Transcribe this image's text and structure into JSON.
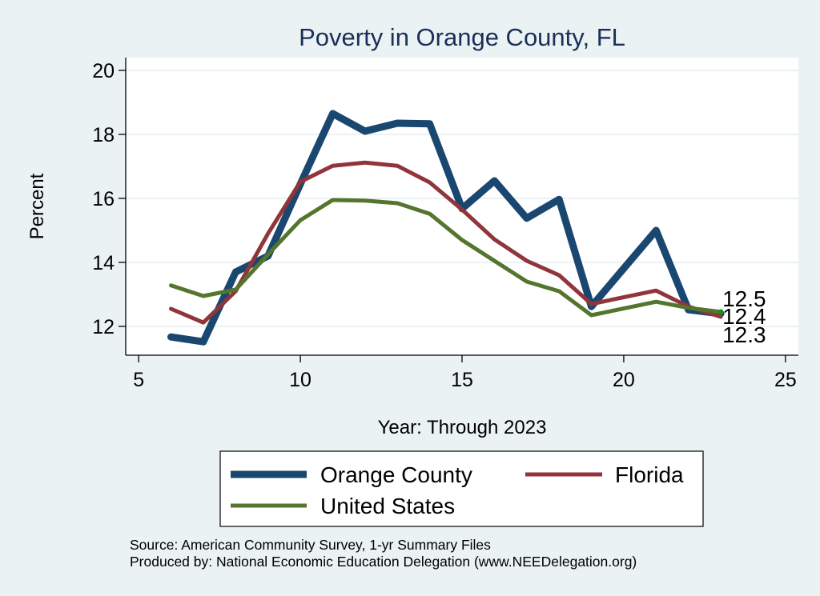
{
  "chart_data": {
    "type": "line",
    "title": "Poverty in Orange County, FL",
    "xlabel": "Year: Through 2023",
    "ylabel": "Percent",
    "xlim": [
      4.6,
      25.4
    ],
    "ylim": [
      11.1,
      20.4
    ],
    "xticks": [
      5,
      10,
      15,
      20,
      25
    ],
    "yticks": [
      12,
      14,
      16,
      18,
      20
    ],
    "grid": "horizontal",
    "x": [
      6,
      7,
      8,
      9,
      10,
      11,
      12,
      13,
      14,
      15,
      16,
      17,
      18,
      19,
      20,
      21,
      22,
      23
    ],
    "series": [
      {
        "name": "Orange County",
        "color": "#1a476f",
        "values": [
          11.67,
          11.52,
          13.7,
          14.2,
          16.45,
          18.65,
          18.1,
          18.35,
          18.33,
          15.68,
          16.55,
          15.38,
          15.97,
          12.62,
          null,
          15.0,
          12.52,
          12.4
        ]
      },
      {
        "name": "Florida",
        "color": "#90353b",
        "values": [
          12.55,
          12.12,
          13.1,
          14.9,
          16.52,
          17.02,
          17.12,
          17.02,
          16.5,
          15.65,
          14.72,
          14.05,
          13.6,
          12.7,
          null,
          13.12,
          12.62,
          12.3
        ]
      },
      {
        "name": "United States",
        "color": "#55752f",
        "values": [
          13.28,
          12.95,
          13.15,
          14.25,
          15.32,
          15.95,
          15.93,
          15.85,
          15.52,
          14.7,
          14.05,
          13.4,
          13.1,
          12.35,
          null,
          12.77,
          12.58,
          12.45
        ]
      }
    ],
    "end_labels": [
      "12.5",
      "12.4",
      "12.3"
    ],
    "legend": {
      "position": "bottom",
      "entries": [
        "Orange County",
        "Florida",
        "United States"
      ]
    },
    "notes": [
      "Source: American Community Survey, 1-yr Summary Files",
      "Produced by: National Economic Education Delegation (www.NEEDelegation.org)"
    ]
  },
  "colors": {
    "background": "#eaf2f3",
    "plot_background": "#ffffff",
    "gridline": "#eaf2f3",
    "title": "#1a2f59",
    "end_marker": "#1b8f1b"
  }
}
